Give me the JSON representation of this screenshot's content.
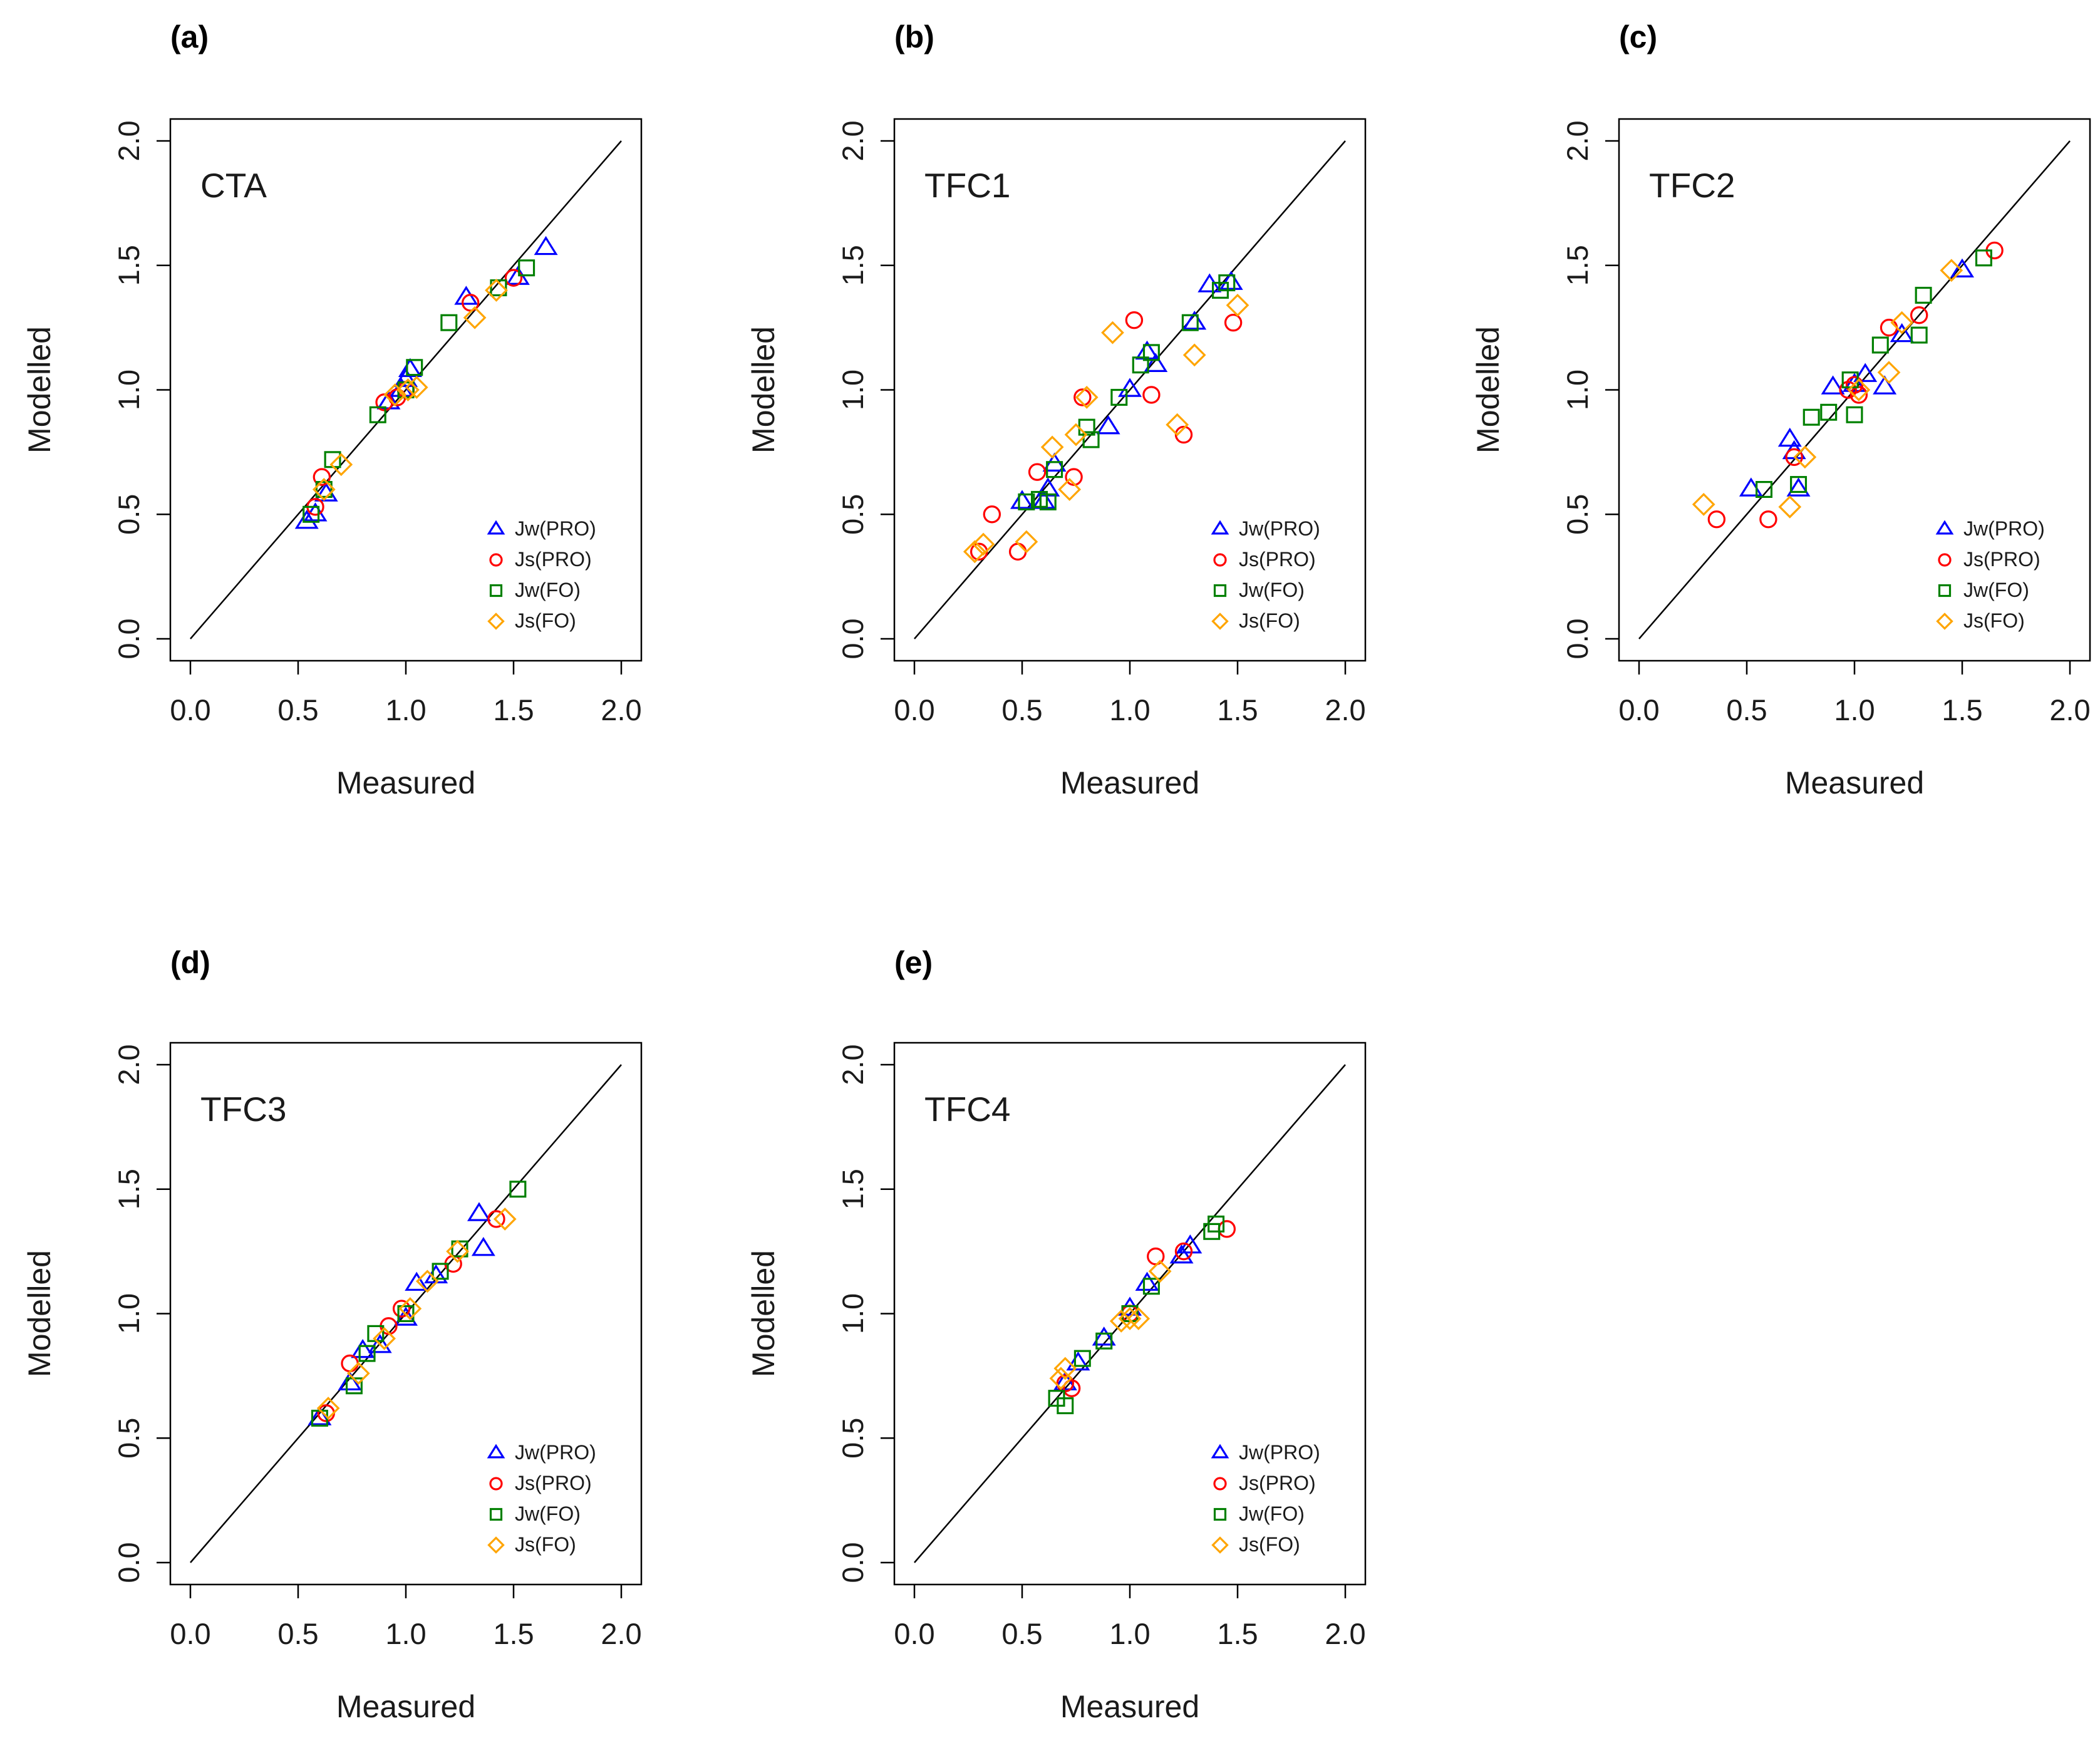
{
  "colors": {
    "Jw(PRO)": "#0000ff",
    "Js(PRO)": "#ff0000",
    "Jw(FO)": "#008000",
    "Js(FO)": "#ffa500",
    "identity_line": "#000000",
    "frame": "#000000"
  },
  "chart_data": [
    {
      "type": "scatter",
      "panel_label": "(a)",
      "title": "CTA",
      "xlabel": "Measured",
      "ylabel": "Modelled",
      "xlim": [
        0,
        2
      ],
      "ylim": [
        0,
        2
      ],
      "xticks": [
        "0.0",
        "0.5",
        "1.0",
        "1.5",
        "2.0"
      ],
      "yticks": [
        "0.0",
        "0.5",
        "1.0",
        "1.5",
        "2.0"
      ],
      "identity_line": true,
      "legend_position": "bottom-right",
      "series": [
        {
          "name": "Jw(PRO)",
          "marker": "triangle",
          "x": [
            0.54,
            0.58,
            0.63,
            0.92,
            0.98,
            1.0,
            1.02,
            1.28,
            1.52,
            1.65
          ],
          "y": [
            0.47,
            0.5,
            0.58,
            0.95,
            1.0,
            1.04,
            1.08,
            1.37,
            1.45,
            1.57
          ]
        },
        {
          "name": "Js(PRO)",
          "marker": "circle",
          "x": [
            0.58,
            0.61,
            0.9,
            0.96,
            1.0,
            1.3,
            1.5
          ],
          "y": [
            0.53,
            0.65,
            0.95,
            0.97,
            1.0,
            1.35,
            1.45
          ]
        },
        {
          "name": "Jw(FO)",
          "marker": "square",
          "x": [
            0.56,
            0.62,
            0.66,
            0.87,
            1.0,
            1.04,
            1.2,
            1.43,
            1.56
          ],
          "y": [
            0.5,
            0.6,
            0.72,
            0.9,
            1.0,
            1.09,
            1.27,
            1.41,
            1.49
          ]
        },
        {
          "name": "Js(FO)",
          "marker": "diamond",
          "x": [
            0.62,
            0.7,
            0.95,
            1.01,
            1.05,
            1.32,
            1.42
          ],
          "y": [
            0.6,
            0.7,
            0.98,
            1.0,
            1.01,
            1.29,
            1.4
          ]
        }
      ]
    },
    {
      "type": "scatter",
      "panel_label": "(b)",
      "title": "TFC1",
      "xlabel": "Measured",
      "ylabel": "Modelled",
      "xlim": [
        0,
        2
      ],
      "ylim": [
        0,
        2
      ],
      "xticks": [
        "0.0",
        "0.5",
        "1.0",
        "1.5",
        "2.0"
      ],
      "yticks": [
        "0.0",
        "0.5",
        "1.0",
        "1.5",
        "2.0"
      ],
      "identity_line": true,
      "legend_position": "bottom-right",
      "series": [
        {
          "name": "Jw(PRO)",
          "marker": "triangle",
          "x": [
            0.5,
            0.6,
            0.62,
            0.65,
            0.9,
            1.0,
            1.08,
            1.12,
            1.3,
            1.37,
            1.47
          ],
          "y": [
            0.55,
            0.55,
            0.6,
            0.7,
            0.85,
            1.0,
            1.15,
            1.1,
            1.27,
            1.42,
            1.43
          ]
        },
        {
          "name": "Js(PRO)",
          "marker": "circle",
          "x": [
            0.3,
            0.36,
            0.48,
            0.57,
            0.74,
            0.78,
            1.02,
            1.1,
            1.25,
            1.48
          ],
          "y": [
            0.35,
            0.5,
            0.35,
            0.67,
            0.65,
            0.97,
            1.28,
            0.98,
            0.82,
            1.27
          ]
        },
        {
          "name": "Jw(FO)",
          "marker": "square",
          "x": [
            0.52,
            0.58,
            0.62,
            0.65,
            0.8,
            0.82,
            0.95,
            1.05,
            1.1,
            1.28,
            1.42,
            1.45
          ],
          "y": [
            0.55,
            0.56,
            0.55,
            0.68,
            0.85,
            0.8,
            0.97,
            1.1,
            1.15,
            1.27,
            1.4,
            1.43
          ]
        },
        {
          "name": "Js(FO)",
          "marker": "diamond",
          "x": [
            0.28,
            0.32,
            0.52,
            0.64,
            0.72,
            0.75,
            0.8,
            0.92,
            1.22,
            1.3,
            1.5
          ],
          "y": [
            0.35,
            0.38,
            0.39,
            0.77,
            0.6,
            0.82,
            0.97,
            1.23,
            0.86,
            1.14,
            1.34
          ]
        }
      ]
    },
    {
      "type": "scatter",
      "panel_label": "(c)",
      "title": "TFC2",
      "xlabel": "Measured",
      "ylabel": "Modelled",
      "xlim": [
        0,
        2
      ],
      "ylim": [
        0,
        2
      ],
      "xticks": [
        "0.0",
        "0.5",
        "1.0",
        "1.5",
        "2.0"
      ],
      "yticks": [
        "0.0",
        "0.5",
        "1.0",
        "1.5",
        "2.0"
      ],
      "identity_line": true,
      "legend_position": "bottom-right",
      "series": [
        {
          "name": "Jw(PRO)",
          "marker": "triangle",
          "x": [
            0.52,
            0.7,
            0.72,
            0.74,
            0.9,
            1.0,
            1.05,
            1.14,
            1.22,
            1.5
          ],
          "y": [
            0.6,
            0.8,
            0.75,
            0.6,
            1.01,
            1.02,
            1.06,
            1.01,
            1.22,
            1.48
          ]
        },
        {
          "name": "Js(PRO)",
          "marker": "circle",
          "x": [
            0.36,
            0.6,
            0.72,
            0.97,
            1.0,
            1.02,
            1.16,
            1.3,
            1.65
          ],
          "y": [
            0.48,
            0.48,
            0.73,
            1.0,
            1.02,
            0.98,
            1.25,
            1.3,
            1.56
          ]
        },
        {
          "name": "Jw(FO)",
          "marker": "square",
          "x": [
            0.58,
            0.74,
            0.8,
            0.88,
            0.98,
            1.0,
            1.12,
            1.3,
            1.32,
            1.6
          ],
          "y": [
            0.6,
            0.62,
            0.89,
            0.91,
            1.04,
            0.9,
            1.18,
            1.22,
            1.38,
            1.53
          ]
        },
        {
          "name": "Js(FO)",
          "marker": "diamond",
          "x": [
            0.3,
            0.7,
            0.77,
            1.02,
            1.16,
            1.22,
            1.45
          ],
          "y": [
            0.54,
            0.53,
            0.73,
            1.0,
            1.07,
            1.27,
            1.48
          ]
        }
      ]
    },
    {
      "type": "scatter",
      "panel_label": "(d)",
      "title": "TFC3",
      "xlabel": "Measured",
      "ylabel": "Modelled",
      "xlim": [
        0,
        2
      ],
      "ylim": [
        0,
        2
      ],
      "xticks": [
        "0.0",
        "0.5",
        "1.0",
        "1.5",
        "2.0"
      ],
      "yticks": [
        "0.0",
        "0.5",
        "1.0",
        "1.5",
        "2.0"
      ],
      "identity_line": true,
      "legend_position": "bottom-right",
      "series": [
        {
          "name": "Jw(PRO)",
          "marker": "triangle",
          "x": [
            0.6,
            0.74,
            0.8,
            0.88,
            1.0,
            1.05,
            1.14,
            1.34,
            1.36
          ],
          "y": [
            0.58,
            0.72,
            0.85,
            0.87,
            0.98,
            1.12,
            1.15,
            1.4,
            1.26
          ]
        },
        {
          "name": "Js(PRO)",
          "marker": "circle",
          "x": [
            0.63,
            0.74,
            0.92,
            0.98,
            1.22,
            1.42
          ],
          "y": [
            0.6,
            0.8,
            0.95,
            1.02,
            1.2,
            1.38
          ]
        },
        {
          "name": "Jw(FO)",
          "marker": "square",
          "x": [
            0.6,
            0.76,
            0.82,
            0.86,
            1.0,
            1.16,
            1.25,
            1.52
          ],
          "y": [
            0.58,
            0.71,
            0.84,
            0.92,
            1.0,
            1.17,
            1.26,
            1.5
          ]
        },
        {
          "name": "Js(FO)",
          "marker": "diamond",
          "x": [
            0.64,
            0.78,
            0.9,
            1.02,
            1.1,
            1.24,
            1.46
          ],
          "y": [
            0.62,
            0.76,
            0.9,
            1.02,
            1.13,
            1.25,
            1.38
          ]
        }
      ]
    },
    {
      "type": "scatter",
      "panel_label": "(e)",
      "title": "TFC4",
      "xlabel": "Measured",
      "ylabel": "Modelled",
      "xlim": [
        0,
        2
      ],
      "ylim": [
        0,
        2
      ],
      "xticks": [
        "0.0",
        "0.5",
        "1.0",
        "1.5",
        "2.0"
      ],
      "yticks": [
        "0.0",
        "0.5",
        "1.0",
        "1.5",
        "2.0"
      ],
      "identity_line": true,
      "legend_position": "bottom-right",
      "series": [
        {
          "name": "Jw(PRO)",
          "marker": "triangle",
          "x": [
            0.7,
            0.76,
            0.88,
            1.0,
            1.08,
            1.24,
            1.28
          ],
          "y": [
            0.72,
            0.8,
            0.9,
            1.02,
            1.12,
            1.23,
            1.27
          ]
        },
        {
          "name": "Js(PRO)",
          "marker": "circle",
          "x": [
            0.7,
            0.73,
            1.0,
            1.12,
            1.25,
            1.45
          ],
          "y": [
            0.72,
            0.7,
            1.0,
            1.23,
            1.25,
            1.34
          ]
        },
        {
          "name": "Jw(FO)",
          "marker": "square",
          "x": [
            0.66,
            0.7,
            0.78,
            0.88,
            1.0,
            1.1,
            1.38,
            1.4
          ],
          "y": [
            0.66,
            0.63,
            0.82,
            0.89,
            1.0,
            1.11,
            1.33,
            1.36
          ]
        },
        {
          "name": "Js(FO)",
          "marker": "diamond",
          "x": [
            0.68,
            0.7,
            0.96,
            1.0,
            1.04,
            1.14
          ],
          "y": [
            0.74,
            0.78,
            0.97,
            0.98,
            0.98,
            1.17
          ]
        }
      ]
    }
  ]
}
